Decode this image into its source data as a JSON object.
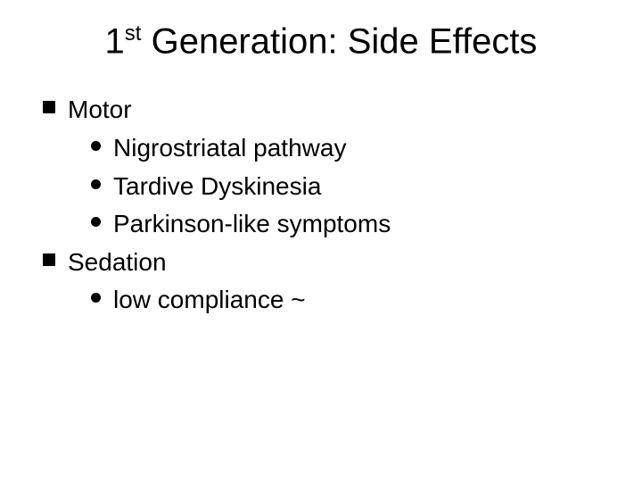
{
  "slide": {
    "title_pre": "1",
    "title_sup": "st",
    "title_post": " Generation: Side Effects",
    "title_fontsize": 40,
    "body_fontsize": 28,
    "text_color": "#000000",
    "background_color": "#ffffff",
    "bullets": [
      {
        "label": "Motor",
        "marker_shape": "square",
        "marker_size": 14,
        "marker_color": "#000000",
        "children": [
          {
            "label": "Nigrostriatal pathway",
            "marker_shape": "disc",
            "marker_size": 11,
            "marker_color": "#000000"
          },
          {
            "label": "Tardive Dyskinesia",
            "marker_shape": "disc",
            "marker_size": 11,
            "marker_color": "#000000"
          },
          {
            "label": "Parkinson-like symptoms",
            "marker_shape": "disc",
            "marker_size": 11,
            "marker_color": "#000000"
          }
        ]
      },
      {
        "label": "Sedation",
        "marker_shape": "square",
        "marker_size": 14,
        "marker_color": "#000000",
        "children": [
          {
            "label": "low compliance ~",
            "marker_shape": "disc",
            "marker_size": 11,
            "marker_color": "#000000"
          }
        ]
      }
    ]
  }
}
